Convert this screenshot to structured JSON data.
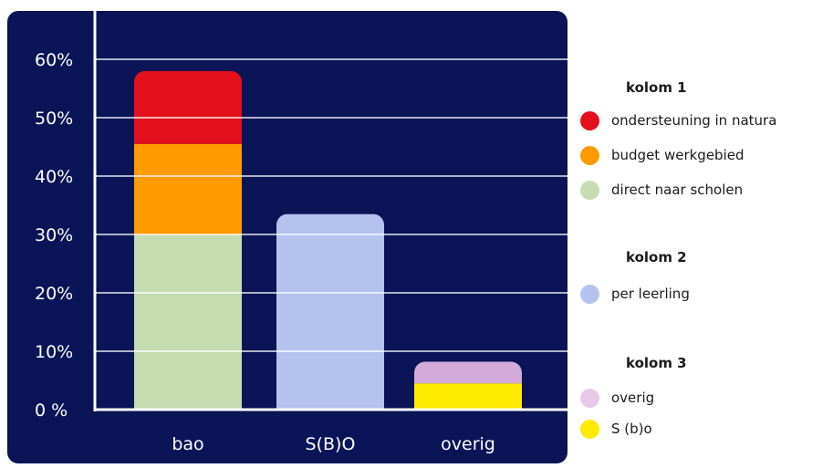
{
  "chart_data": {
    "type": "bar",
    "stacked": true,
    "categories": [
      "bao",
      "S(B)O",
      "overig"
    ],
    "ylim": [
      0,
      60
    ],
    "yticks": [
      0,
      10,
      20,
      30,
      40,
      50,
      60
    ],
    "ytick_labels": [
      "0 %",
      "10%",
      "20%",
      "30%",
      "40%",
      "50%",
      "60%"
    ],
    "grid": true,
    "legend_position": "right",
    "bars": [
      {
        "category": "bao",
        "segments": [
          {
            "name": "direct naar scholen",
            "value": 30,
            "color": "#c4dcaf"
          },
          {
            "name": "budget werkgebied",
            "value": 15.5,
            "color": "#ff9b00"
          },
          {
            "name": "ondersteuning in natura",
            "value": 12.5,
            "color": "#e4101c"
          }
        ]
      },
      {
        "category": "S(B)O",
        "segments": [
          {
            "name": "per leerling",
            "value": 33.5,
            "color": "#b4c3ee"
          }
        ]
      },
      {
        "category": "overig",
        "segments": [
          {
            "name": "S (b)o",
            "value": 4.5,
            "color": "#ffea00"
          },
          {
            "name": "overig",
            "value": 3.7,
            "color": "#d4aad8"
          }
        ]
      }
    ]
  },
  "legend": {
    "groups": [
      {
        "title": "kolom 1",
        "items": [
          {
            "label": "ondersteuning in natura",
            "color": "#e4101c"
          },
          {
            "label": "budget werkgebied",
            "color": "#ff9b00"
          },
          {
            "label": "direct naar scholen",
            "color": "#c4dcaf"
          }
        ]
      },
      {
        "title": "kolom 2",
        "items": [
          {
            "label": "per leerling",
            "color": "#b4c3ee"
          }
        ]
      },
      {
        "title": "kolom 3",
        "items": [
          {
            "label": "overig",
            "color": "#e8c9ea"
          },
          {
            "label": "S (b)o",
            "color": "#ffea00"
          }
        ]
      }
    ]
  },
  "colors": {
    "panel_background": "#0a1457",
    "gridline": "#ffffff",
    "axis": "#ffffff",
    "text": "#ffffff"
  }
}
